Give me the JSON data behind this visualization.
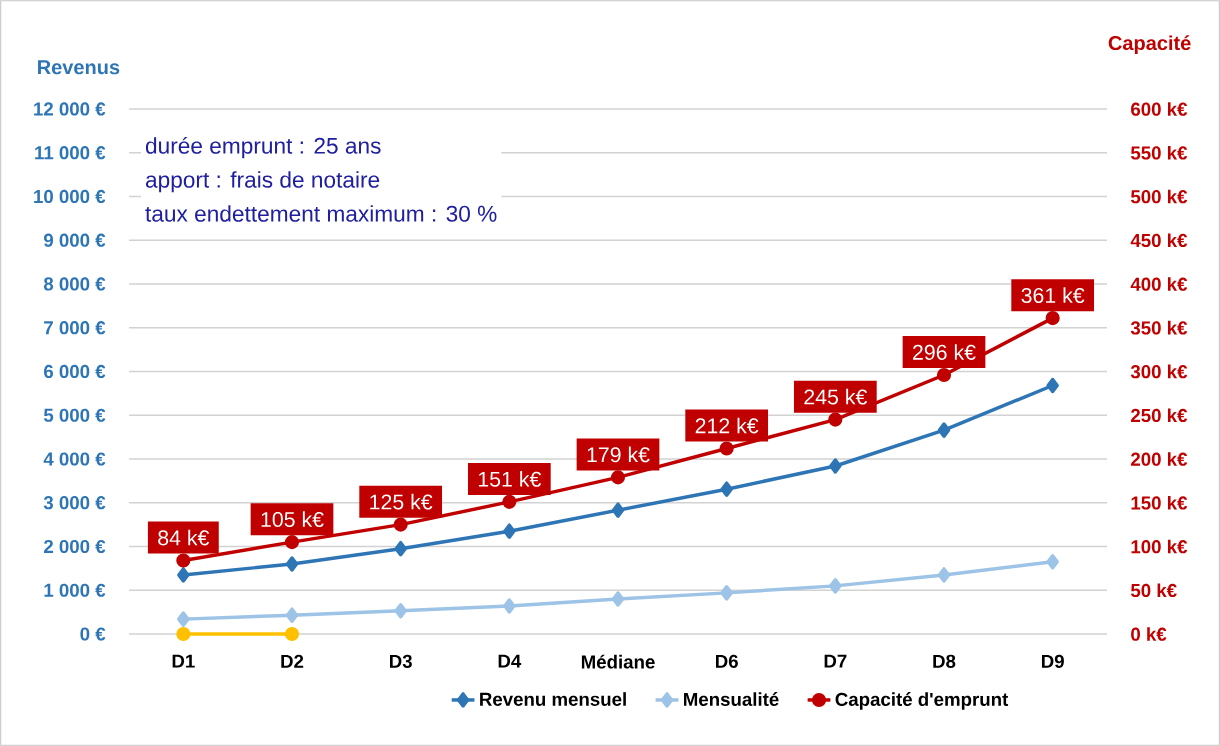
{
  "chart_data": {
    "type": "line",
    "ylabel": "Revenus",
    "y2label": "Capacité",
    "annotations": [
      "durée emprunt : 25 ans",
      "apport : frais de notaire",
      "taux endettement maximum : 30 %"
    ],
    "categories": [
      "D1",
      "D2",
      "D3",
      "D4",
      "Médiane",
      "D6",
      "D7",
      "D8",
      "D9"
    ],
    "series": [
      {
        "name": "Revenu mensuel",
        "color": "#2e75b6",
        "marker": "diamond",
        "values": [
          1350,
          1600,
          1950,
          2350,
          2830,
          3310,
          3840,
          4660,
          5680
        ]
      },
      {
        "name": "Mensualité",
        "color": "#9dc3e6",
        "marker": "diamond",
        "values": [
          340,
          430,
          530,
          640,
          800,
          940,
          1100,
          1350,
          1650
        ]
      },
      {
        "name": "Capacité d'emprunt",
        "color": "#c00000",
        "marker": "circle",
        "axis": "y2",
        "values": [
          84,
          105,
          125,
          151,
          179,
          212,
          245,
          296,
          361
        ],
        "value_labels": [
          "84 k€",
          "105 k€",
          "125 k€",
          "151 k€",
          "179 k€",
          "212 k€",
          "245 k€",
          "296 k€",
          "361 k€"
        ]
      },
      {
        "color": "#ffc000",
        "marker": "circle",
        "values": [
          0,
          0,
          null,
          null,
          null,
          null,
          null,
          null,
          null
        ]
      }
    ],
    "ylim": [
      0,
      12000
    ],
    "yticks": [
      {
        "value": 0,
        "label": "0 €"
      },
      {
        "value": 1000,
        "label": "1 000 €"
      },
      {
        "value": 2000,
        "label": "2 000 €"
      },
      {
        "value": 3000,
        "label": "3 000 €"
      },
      {
        "value": 4000,
        "label": "4 000 €"
      },
      {
        "value": 5000,
        "label": "5 000 €"
      },
      {
        "value": 6000,
        "label": "6 000 €"
      },
      {
        "value": 7000,
        "label": "7 000 €"
      },
      {
        "value": 8000,
        "label": "8 000 €"
      },
      {
        "value": 9000,
        "label": "9 000 €"
      },
      {
        "value": 10000,
        "label": "10 000 €"
      },
      {
        "value": 11000,
        "label": "11 000 €"
      },
      {
        "value": 12000,
        "label": "12 000 €"
      }
    ],
    "y2lim": [
      0,
      600
    ],
    "y2ticks": [
      {
        "value": 0,
        "label": "0 k€"
      },
      {
        "value": 50,
        "label": "50 k€"
      },
      {
        "value": 100,
        "label": "100 k€"
      },
      {
        "value": 150,
        "label": "150 k€"
      },
      {
        "value": 200,
        "label": "200 k€"
      },
      {
        "value": 250,
        "label": "250 k€"
      },
      {
        "value": 300,
        "label": "300 k€"
      },
      {
        "value": 350,
        "label": "350 k€"
      },
      {
        "value": 400,
        "label": "400 k€"
      },
      {
        "value": 450,
        "label": "450 k€"
      },
      {
        "value": 500,
        "label": "500 k€"
      },
      {
        "value": 550,
        "label": "550 k€"
      },
      {
        "value": 600,
        "label": "600 k€"
      }
    ],
    "grid": "y",
    "legend": "bottom"
  }
}
